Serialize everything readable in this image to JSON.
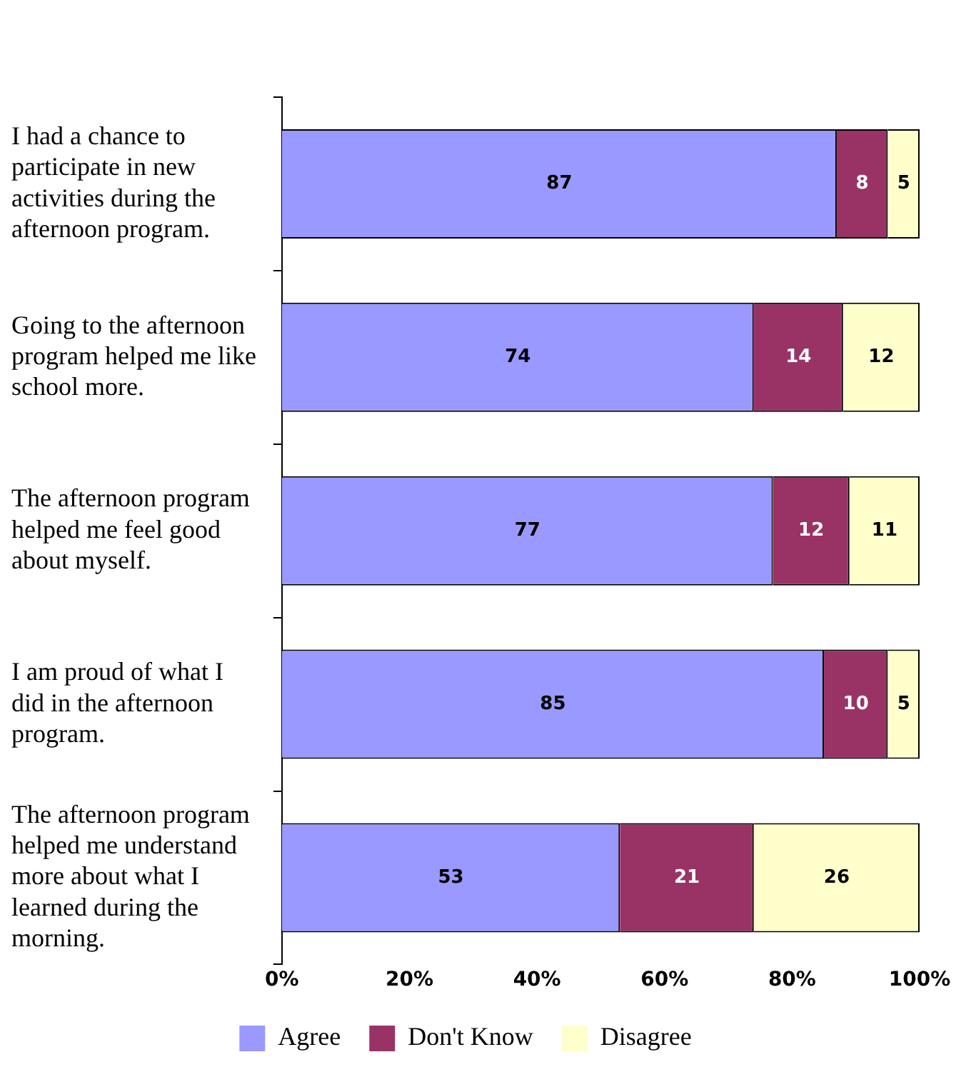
{
  "chart_data": {
    "type": "bar",
    "orientation": "horizontal",
    "stacked": true,
    "data_labels": true,
    "legend": "bottom",
    "grid": false,
    "categories": [
      "I had a chance to participate in new activities during the afternoon program.",
      "Going to the afternoon program helped me like school more.",
      "The afternoon program helped me feel good about myself.",
      "I am proud of what I did in the afternoon program.",
      "The afternoon program helped me understand more about what I learned during the morning."
    ],
    "series": [
      {
        "name": "Agree",
        "color": "#9999ff",
        "values": [
          87,
          74,
          77,
          85,
          53
        ]
      },
      {
        "name": "Don't Know",
        "color": "#993366",
        "values": [
          8,
          14,
          12,
          10,
          21
        ]
      },
      {
        "name": "Disagree",
        "color": "#ffffcc",
        "values": [
          5,
          12,
          11,
          5,
          26
        ]
      }
    ],
    "xlim": [
      0,
      100
    ],
    "xticks": [
      {
        "value": 0,
        "label": "0%"
      },
      {
        "value": 20,
        "label": "20%"
      },
      {
        "value": 40,
        "label": "40%"
      },
      {
        "value": 60,
        "label": "60%"
      },
      {
        "value": 80,
        "label": "80%"
      },
      {
        "value": 100,
        "label": "100%"
      }
    ]
  }
}
